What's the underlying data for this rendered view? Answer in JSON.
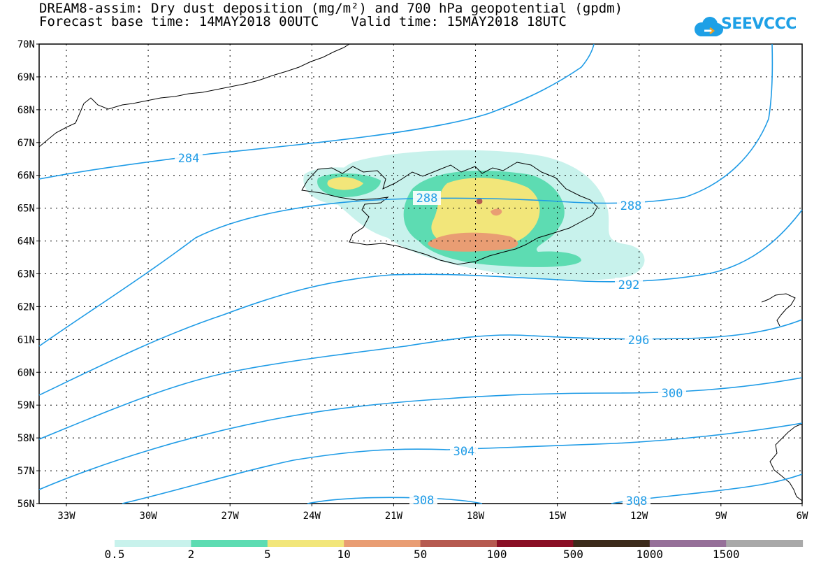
{
  "header": {
    "title_line1": "DREAM8-assim: Dry dust deposition (mg/m²) and 700 hPa geopotential (gpdm)",
    "title_line2": "Forecast base time: 14MAY2018 00UTC    Valid time: 15MAY2018 18UTC"
  },
  "logo": {
    "text": "SEEVCCC"
  },
  "axes": {
    "lat_labels": [
      "70N",
      "69N",
      "68N",
      "67N",
      "66N",
      "65N",
      "64N",
      "63N",
      "62N",
      "61N",
      "60N",
      "59N",
      "58N",
      "57N",
      "56N"
    ],
    "lon_labels": [
      "33W",
      "30W",
      "27W",
      "24W",
      "21W",
      "18W",
      "15W",
      "12W",
      "9W",
      "6W"
    ]
  },
  "contours": {
    "labels": [
      "284",
      "288",
      "288",
      "292",
      "296",
      "300",
      "304",
      "308",
      "308"
    ],
    "color": "#1e9be6"
  },
  "legend": {
    "labels": [
      "0.5",
      "2",
      "5",
      "10",
      "50",
      "100",
      "500",
      "1000",
      "1500"
    ],
    "colors": [
      "#c8f2ec",
      "#5ddcb2",
      "#f2e67a",
      "#e99d73",
      "#b65a50",
      "#8a0f25",
      "#3c2b1b",
      "#967099",
      "#a9a9a9"
    ]
  },
  "dust_colors": {
    "light": "#c8f2ec",
    "green": "#5ddcb2",
    "yellow": "#f2e67a",
    "orange": "#e99d73",
    "red": "#b65a50"
  }
}
